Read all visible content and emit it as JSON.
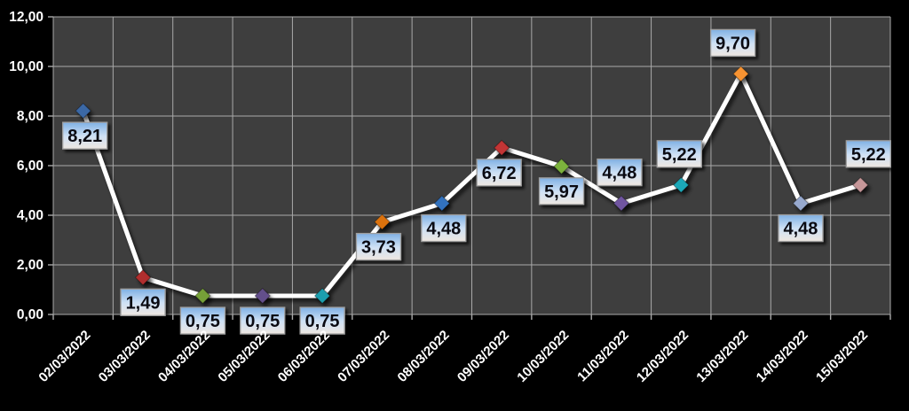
{
  "chart_data": {
    "type": "line",
    "title": "",
    "xlabel": "",
    "ylabel": "",
    "categories": [
      "02/03/2022",
      "03/03/2022",
      "04/03/2022",
      "05/03/2022",
      "06/03/2022",
      "07/03/2022",
      "08/03/2022",
      "09/03/2022",
      "10/03/2022",
      "11/03/2022",
      "12/03/2022",
      "13/03/2022",
      "14/03/2022",
      "15/03/2022"
    ],
    "values": [
      8.21,
      1.49,
      0.75,
      0.75,
      0.75,
      3.73,
      4.48,
      6.72,
      5.97,
      4.48,
      5.22,
      9.7,
      4.48,
      5.22
    ],
    "value_labels": [
      "8,21",
      "1,49",
      "0,75",
      "0,75",
      "0,75",
      "3,73",
      "4,48",
      "6,72",
      "5,97",
      "4,48",
      "5,22",
      "9,70",
      "4,48",
      "5,22"
    ],
    "label_side": [
      "below",
      "below",
      "below",
      "below",
      "below",
      "below",
      "below",
      "below",
      "below",
      "above",
      "above",
      "above",
      "below",
      "above"
    ],
    "label_dx": [
      2,
      0,
      0,
      0,
      0,
      -4,
      2,
      -3,
      0,
      -2,
      -2,
      -9,
      0,
      9
    ],
    "y_ticks": [
      "0,00",
      "2,00",
      "4,00",
      "6,00",
      "8,00",
      "10,00",
      "12,00"
    ],
    "y_tick_values": [
      0,
      2,
      4,
      6,
      8,
      10,
      12
    ],
    "ylim": [
      0,
      12
    ],
    "grid": "on",
    "legend": "none",
    "marker_colors": [
      "#3A67A5",
      "#B12F2E",
      "#76A038",
      "#64508B",
      "#1E9EAE",
      "#DC720E",
      "#3372BE",
      "#C23434",
      "#7CB23E",
      "#6F55A0",
      "#1FA8B8",
      "#F79331",
      "#97A9CE",
      "#C69799"
    ],
    "colors": {
      "page_background": "#000000",
      "plot_background": "#3E3E3E",
      "gridline": "#A9A9A9",
      "line": "#FFFFFF",
      "axis_text": "#FFFFFF",
      "label_box_top": "#7FB0E4",
      "label_box_mid": "#CFE1F5",
      "label_box_bottom": "#EEE7E1",
      "label_box_border": "#9E9E9E",
      "label_text": "#0A0A12"
    }
  }
}
